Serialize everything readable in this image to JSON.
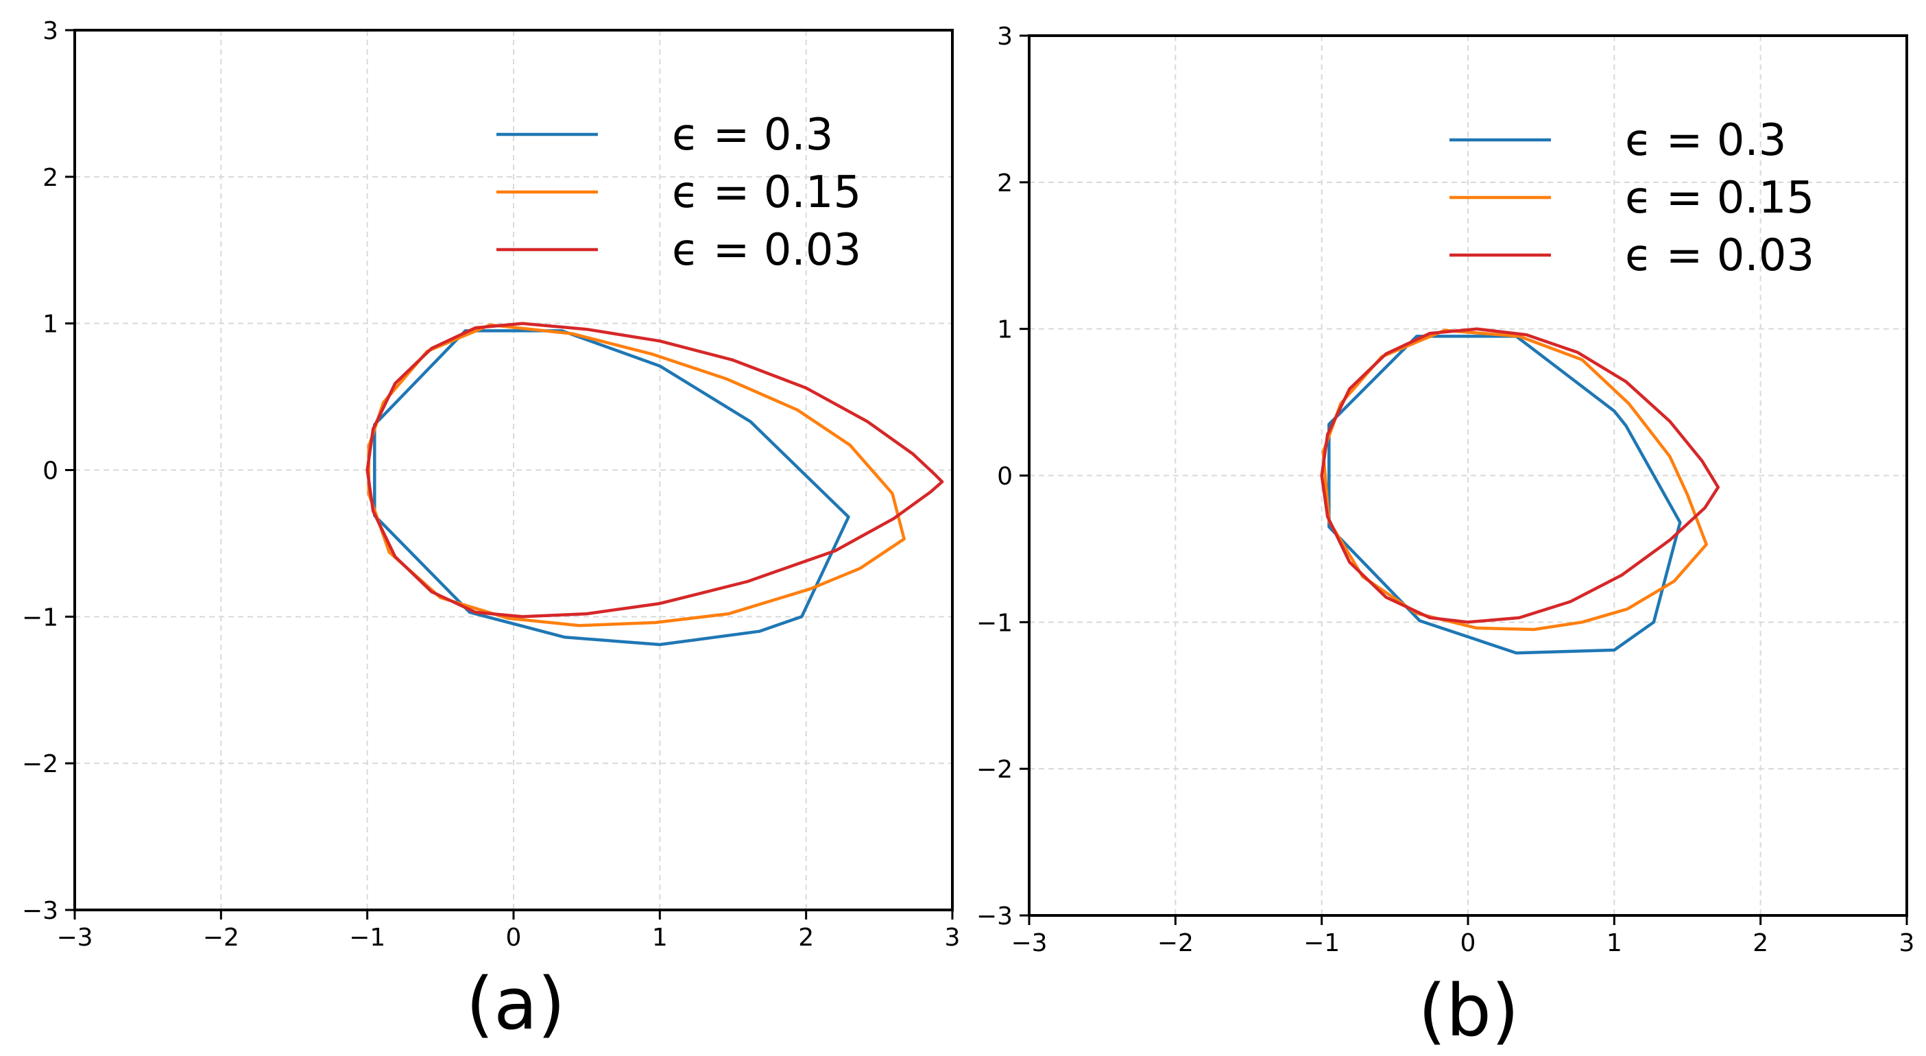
{
  "chart_data": [
    {
      "type": "line",
      "caption": "(a)",
      "xlim": [
        -3,
        3
      ],
      "ylim": [
        -3,
        3
      ],
      "xticks": [
        "−3",
        "−2",
        "−1",
        "0",
        "1",
        "2",
        "3"
      ],
      "yticks": [
        "−3",
        "−2",
        "−1",
        "0",
        "1",
        "2",
        "3"
      ],
      "grid": true,
      "legend_position": "upper-right",
      "series": [
        {
          "name": "ϵ = 0.3",
          "color": "#1f77b4",
          "points": [
            [
              -0.95,
              0.31
            ],
            [
              -0.33,
              0.95
            ],
            [
              0.33,
              0.95
            ],
            [
              1.0,
              0.71
            ],
            [
              1.62,
              0.33
            ],
            [
              2.29,
              -0.32
            ],
            [
              1.97,
              -1.0
            ],
            [
              1.68,
              -1.1
            ],
            [
              1.0,
              -1.19
            ],
            [
              0.35,
              -1.14
            ],
            [
              -0.3,
              -0.97
            ],
            [
              -0.95,
              -0.31
            ],
            [
              -0.95,
              0.31
            ]
          ]
        },
        {
          "name": "ϵ = 0.15",
          "color": "#ff7f0e",
          "points": [
            [
              -0.99,
              0.16
            ],
            [
              -0.89,
              0.46
            ],
            [
              -0.59,
              0.81
            ],
            [
              -0.16,
              0.99
            ],
            [
              0.4,
              0.93
            ],
            [
              0.95,
              0.79
            ],
            [
              1.46,
              0.62
            ],
            [
              1.94,
              0.41
            ],
            [
              2.3,
              0.17
            ],
            [
              2.59,
              -0.16
            ],
            [
              2.67,
              -0.47
            ],
            [
              2.37,
              -0.67
            ],
            [
              2.03,
              -0.81
            ],
            [
              1.47,
              -0.98
            ],
            [
              0.97,
              -1.04
            ],
            [
              0.45,
              -1.06
            ],
            [
              -0.04,
              -1.01
            ],
            [
              -0.5,
              -0.87
            ],
            [
              -0.85,
              -0.56
            ],
            [
              -0.99,
              -0.16
            ],
            [
              -0.99,
              0.16
            ]
          ]
        },
        {
          "name": "ϵ = 0.03",
          "color": "#d62728",
          "points": [
            [
              -1.0,
              0.0
            ],
            [
              -0.96,
              0.28
            ],
            [
              -0.81,
              0.59
            ],
            [
              -0.56,
              0.83
            ],
            [
              -0.26,
              0.97
            ],
            [
              0.06,
              1.0
            ],
            [
              0.5,
              0.96
            ],
            [
              1.0,
              0.88
            ],
            [
              1.5,
              0.75
            ],
            [
              2.0,
              0.56
            ],
            [
              2.42,
              0.33
            ],
            [
              2.73,
              0.11
            ],
            [
              2.88,
              -0.03
            ],
            [
              2.93,
              -0.08
            ],
            [
              2.85,
              -0.15
            ],
            [
              2.6,
              -0.33
            ],
            [
              2.2,
              -0.55
            ],
            [
              1.6,
              -0.76
            ],
            [
              1.0,
              -0.91
            ],
            [
              0.5,
              -0.98
            ],
            [
              0.06,
              -1.0
            ],
            [
              -0.26,
              -0.97
            ],
            [
              -0.56,
              -0.83
            ],
            [
              -0.81,
              -0.59
            ],
            [
              -0.96,
              -0.28
            ],
            [
              -1.0,
              0.0
            ]
          ]
        }
      ]
    },
    {
      "type": "line",
      "caption": "(b)",
      "xlim": [
        -3,
        3
      ],
      "ylim": [
        -3,
        3
      ],
      "xticks": [
        "−3",
        "−2",
        "−1",
        "0",
        "1",
        "2",
        "3"
      ],
      "yticks": [
        "−3",
        "−2",
        "−1",
        "0",
        "1",
        "2",
        "3"
      ],
      "grid": true,
      "legend_position": "upper-right",
      "series": [
        {
          "name": "ϵ = 0.3",
          "color": "#1f77b4",
          "points": [
            [
              -0.95,
              0.35
            ],
            [
              -0.35,
              0.95
            ],
            [
              0.33,
              0.95
            ],
            [
              1.0,
              0.44
            ],
            [
              1.08,
              0.34
            ],
            [
              1.45,
              -0.32
            ],
            [
              1.27,
              -1.0
            ],
            [
              1.0,
              -1.19
            ],
            [
              0.33,
              -1.21
            ],
            [
              -0.33,
              -0.99
            ],
            [
              -0.95,
              -0.35
            ],
            [
              -0.95,
              0.35
            ]
          ]
        },
        {
          "name": "ϵ = 0.15",
          "color": "#ff7f0e",
          "points": [
            [
              -0.99,
              0.16
            ],
            [
              -0.87,
              0.49
            ],
            [
              -0.59,
              0.81
            ],
            [
              -0.16,
              0.99
            ],
            [
              0.35,
              0.95
            ],
            [
              0.78,
              0.79
            ],
            [
              1.1,
              0.49
            ],
            [
              1.38,
              0.13
            ],
            [
              1.5,
              -0.13
            ],
            [
              1.63,
              -0.47
            ],
            [
              1.41,
              -0.72
            ],
            [
              1.09,
              -0.91
            ],
            [
              0.78,
              -1.0
            ],
            [
              0.45,
              -1.05
            ],
            [
              0.06,
              -1.04
            ],
            [
              -0.35,
              -0.94
            ],
            [
              -0.72,
              -0.69
            ],
            [
              -0.95,
              -0.31
            ],
            [
              -0.99,
              0.16
            ]
          ]
        },
        {
          "name": "ϵ = 0.03",
          "color": "#d62728",
          "points": [
            [
              -1.0,
              0.0
            ],
            [
              -0.96,
              0.28
            ],
            [
              -0.81,
              0.59
            ],
            [
              -0.56,
              0.83
            ],
            [
              -0.26,
              0.97
            ],
            [
              0.06,
              1.0
            ],
            [
              0.4,
              0.96
            ],
            [
              0.75,
              0.84
            ],
            [
              1.08,
              0.64
            ],
            [
              1.38,
              0.37
            ],
            [
              1.6,
              0.1
            ],
            [
              1.71,
              -0.08
            ],
            [
              1.62,
              -0.22
            ],
            [
              1.38,
              -0.44
            ],
            [
              1.05,
              -0.68
            ],
            [
              0.7,
              -0.86
            ],
            [
              0.35,
              -0.97
            ],
            [
              0.0,
              -1.0
            ],
            [
              -0.26,
              -0.97
            ],
            [
              -0.56,
              -0.83
            ],
            [
              -0.81,
              -0.59
            ],
            [
              -0.96,
              -0.28
            ],
            [
              -1.0,
              0.0
            ]
          ]
        }
      ]
    }
  ]
}
